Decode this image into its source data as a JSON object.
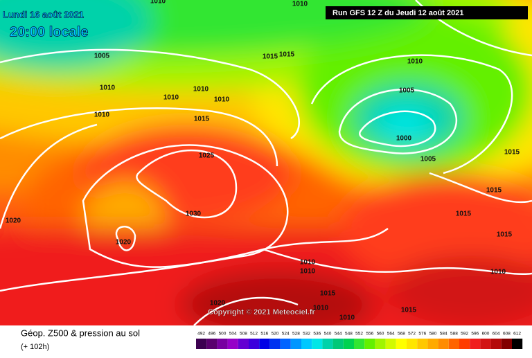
{
  "header": {
    "date": "Lundi 16 août 2021",
    "time": "20:00 locale",
    "run": "Run GFS 12 Z du Jeudi 12 août 2021"
  },
  "copyright": "Copyright © 2021 Meteociel.fr",
  "footer": {
    "title": "Géop. Z500 & pression au sol",
    "lead": "(+ 102h)"
  },
  "isobar_labels": [
    "1010",
    "1010",
    "1005",
    "1015",
    "1015",
    "1010",
    "1010",
    "1010",
    "1010",
    "1010",
    "1005",
    "1010",
    "1015",
    "1000",
    "1025",
    "1005",
    "1015",
    "1015",
    "1015",
    "1030",
    "1020",
    "1015",
    "1020",
    "1010",
    "1010",
    "1010",
    "1015",
    "1020",
    "1010",
    "1015",
    "1010"
  ],
  "colorbar": {
    "ticks": [
      492,
      496,
      500,
      504,
      508,
      512,
      516,
      520,
      524,
      528,
      532,
      536,
      540,
      544,
      548,
      552,
      556,
      560,
      564,
      568,
      572,
      576,
      580,
      584,
      588,
      592,
      596,
      600,
      604,
      608,
      612
    ],
    "colors": [
      "#3c0050",
      "#5a006e",
      "#7800a0",
      "#9600c8",
      "#6400d2",
      "#3c00dc",
      "#0000e6",
      "#0032f0",
      "#0064ff",
      "#0096ff",
      "#00c8ff",
      "#00e6e6",
      "#00d2aa",
      "#00c878",
      "#00d250",
      "#32e632",
      "#64f000",
      "#a0f500",
      "#d2fa00",
      "#ffff00",
      "#ffe600",
      "#ffc800",
      "#ffaa00",
      "#ff8c00",
      "#ff6400",
      "#ff3c00",
      "#f01e1e",
      "#d21414",
      "#b40a0a",
      "#820000",
      "#000000"
    ]
  }
}
